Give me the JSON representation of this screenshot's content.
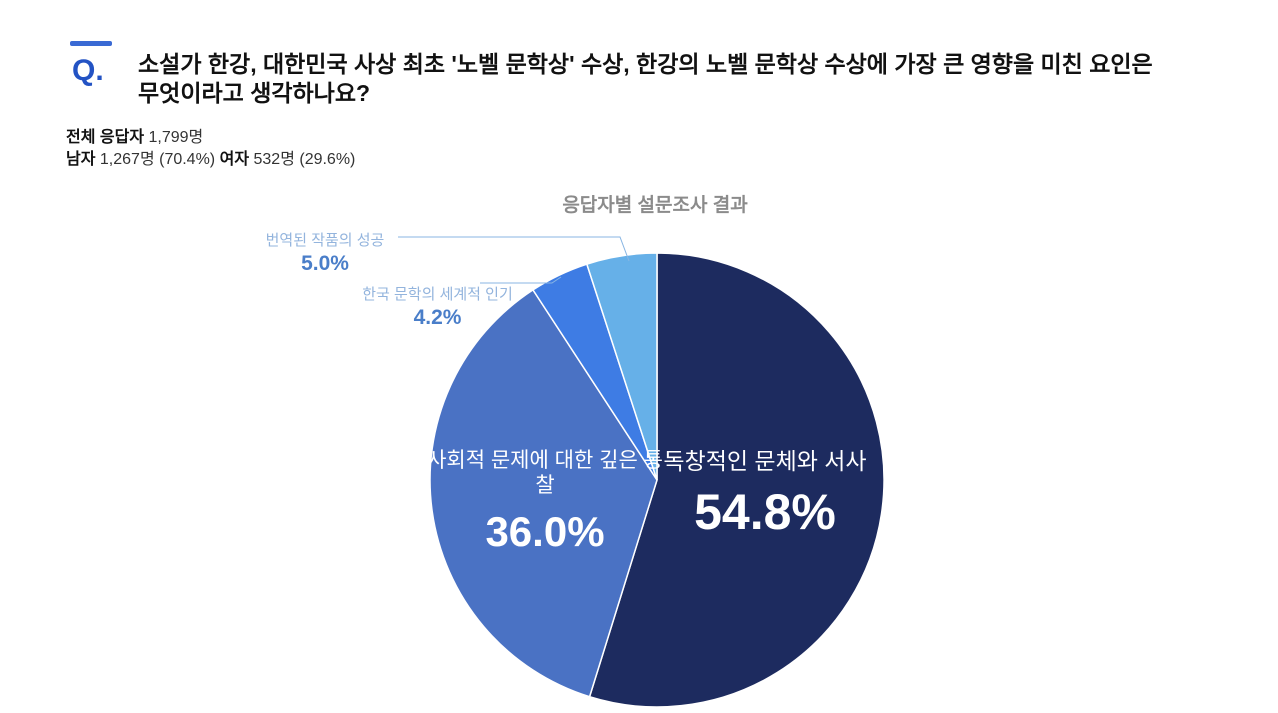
{
  "header": {
    "q_label": "Q.",
    "question_line1": "소설가 한강, 대한민국 사상 최초 '노벨 문학상' 수상, 한강의 노벨 문학상 수상에 가장 큰 영향을 미친 요인은",
    "question_line2": "무엇이라고 생각하나요?"
  },
  "respondents": {
    "total_label": "전체 응답자",
    "total_value": "1,799명",
    "male_label": "남자",
    "male_value": "1,267명 (70.4%)",
    "female_label": "여자",
    "female_value": "532명 (29.6%)"
  },
  "chart_data": {
    "type": "pie",
    "title": "응답자별 설문조사 결과",
    "start_angle_deg": 0,
    "direction": "clockwise",
    "legend_position": "none",
    "segments": [
      {
        "label": "독창적인 문체와 서사",
        "value": 54.8,
        "display": "54.8%",
        "color": "#1d2b5f",
        "label_position": "inside"
      },
      {
        "label": "사회적 문제에 대한 깊은 통찰",
        "value": 36.0,
        "display": "36.0%",
        "color": "#4a72c4",
        "label_position": "inside"
      },
      {
        "label": "한국 문학의 세계적 인기",
        "value": 4.2,
        "display": "4.2%",
        "color": "#3e7ce4",
        "label_position": "outside"
      },
      {
        "label": "번역된 작품의 성공",
        "value": 5.0,
        "display": "5.0%",
        "color": "#66b0e8",
        "label_position": "outside"
      }
    ],
    "colors": {
      "accent_bar": "#3a6ad4",
      "q_text": "#2353c4",
      "callout_label": "#93b4dd",
      "callout_percent": "#4a7ec9",
      "leader_line": "#88b5e3",
      "chart_title": "#8b8b8b"
    }
  }
}
